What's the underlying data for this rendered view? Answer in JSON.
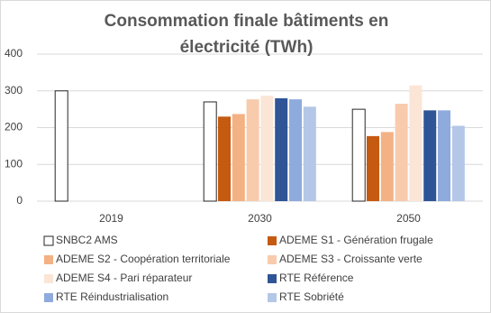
{
  "chart_data": {
    "type": "bar",
    "title": "Consommation finale bâtiments en électricité (TWh)",
    "categories": [
      "2019",
      "2030",
      "2050"
    ],
    "series": [
      {
        "name": "SNBC2 AMS",
        "color": "#ffffff",
        "values": [
          300,
          270,
          250
        ]
      },
      {
        "name": "ADEME S1 - Génération frugale",
        "color": "#c55a11",
        "values": [
          null,
          230,
          177
        ]
      },
      {
        "name": "ADEME S2 - Coopération territoriale",
        "color": "#f4b183",
        "values": [
          null,
          237,
          188
        ]
      },
      {
        "name": "ADEME S3 - Croissante verte",
        "color": "#f8cbad",
        "values": [
          null,
          277,
          265
        ]
      },
      {
        "name": "ADEME S4 - Pari réparateur",
        "color": "#fbe5d6",
        "values": [
          null,
          287,
          315
        ]
      },
      {
        "name": "RTE Référence",
        "color": "#2f5597",
        "values": [
          null,
          280,
          247
        ]
      },
      {
        "name": "RTE Réindustrialisation",
        "color": "#8faadc",
        "values": [
          null,
          277,
          247
        ]
      },
      {
        "name": "RTE Sobriété",
        "color": "#b4c7e7",
        "values": [
          null,
          257,
          205
        ]
      }
    ],
    "ylim": [
      0,
      400
    ],
    "yticks": [
      0,
      100,
      200,
      300,
      400
    ],
    "grid": true
  }
}
